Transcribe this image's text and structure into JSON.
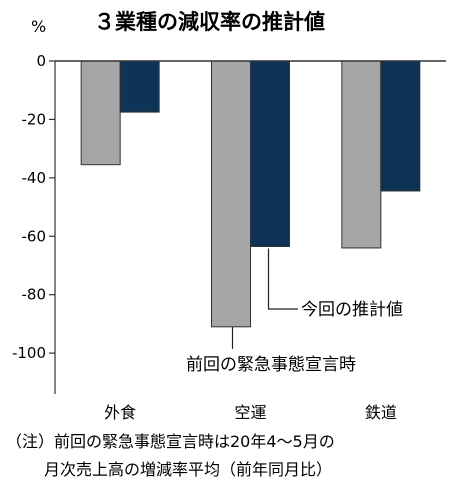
{
  "chart_data": {
    "type": "bar",
    "title": "３業種の減収率の推計値",
    "unit_label": "%",
    "categories": [
      "外食",
      "空運",
      "鉄道"
    ],
    "series": [
      {
        "name": "前回の緊急事態宣言時",
        "color": "#a6a6a8",
        "values": [
          -35.5,
          -91,
          -64
        ]
      },
      {
        "name": "今回の推計値",
        "color": "#0d3356",
        "values": [
          -17.5,
          -63.5,
          -44.5
        ]
      }
    ],
    "ylim": [
      -114,
      0
    ],
    "yticks": [
      0,
      -20,
      -40,
      -60,
      -80,
      -100
    ],
    "ytick_labels": [
      "0",
      "-20",
      "-40",
      "-60",
      "-80",
      "-100"
    ]
  },
  "note_lines": [
    "（注）前回の緊急事態宣言時は20年4～5月の",
    "月次売上高の増減率平均（前年同月比）"
  ]
}
